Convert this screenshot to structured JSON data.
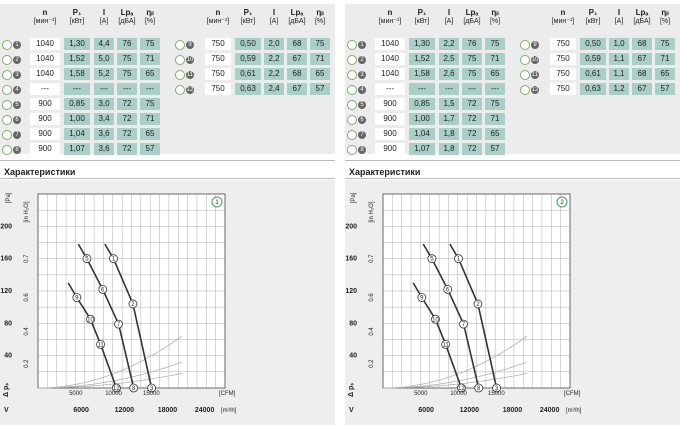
{
  "table": {
    "headers": {
      "n": "n",
      "p1": "P₁",
      "i": "I",
      "lpa": "Lpₐ",
      "eta": "ηᵢₗ"
    },
    "units": {
      "n": "[мин⁻¹]",
      "p1": "[кВт]",
      "i": "[A]",
      "lpa": "[дБA]",
      "eta": "[%]"
    }
  },
  "section_title": "Характеристики",
  "panels": [
    {
      "badge": "1",
      "left_rows": [
        {
          "id": "1",
          "n": "1040",
          "p1": "1,30",
          "i": "4,4",
          "lpa": "76",
          "eta": "75"
        },
        {
          "id": "2",
          "n": "1040",
          "p1": "1,52",
          "i": "5,0",
          "lpa": "75",
          "eta": "71"
        },
        {
          "id": "3",
          "n": "1040",
          "p1": "1,58",
          "i": "5,2",
          "lpa": "75",
          "eta": "65"
        },
        {
          "id": "4",
          "n": "---",
          "p1": "---",
          "i": "---",
          "lpa": "---",
          "eta": "---"
        },
        {
          "id": "5",
          "n": "900",
          "p1": "0,85",
          "i": "3,0",
          "lpa": "72",
          "eta": "75"
        },
        {
          "id": "6",
          "n": "900",
          "p1": "1,00",
          "i": "3,4",
          "lpa": "72",
          "eta": "71"
        },
        {
          "id": "7",
          "n": "900",
          "p1": "1,04",
          "i": "3,6",
          "lpa": "72",
          "eta": "65"
        },
        {
          "id": "8",
          "n": "900",
          "p1": "1,07",
          "i": "3,6",
          "lpa": "72",
          "eta": "57"
        }
      ],
      "right_rows": [
        {
          "id": "9",
          "n": "750",
          "p1": "0,50",
          "i": "2,0",
          "lpa": "68",
          "eta": "75"
        },
        {
          "id": "10",
          "n": "750",
          "p1": "0,59",
          "i": "2,2",
          "lpa": "67",
          "eta": "71"
        },
        {
          "id": "11",
          "n": "750",
          "p1": "0,61",
          "i": "2,2",
          "lpa": "68",
          "eta": "65"
        },
        {
          "id": "12",
          "n": "750",
          "p1": "0,63",
          "i": "2,4",
          "lpa": "67",
          "eta": "57"
        }
      ]
    },
    {
      "badge": "2",
      "left_rows": [
        {
          "id": "1",
          "n": "1040",
          "p1": "1,30",
          "i": "2,2",
          "lpa": "76",
          "eta": "75"
        },
        {
          "id": "2",
          "n": "1040",
          "p1": "1,52",
          "i": "2,5",
          "lpa": "75",
          "eta": "71"
        },
        {
          "id": "3",
          "n": "1040",
          "p1": "1,58",
          "i": "2,6",
          "lpa": "75",
          "eta": "65"
        },
        {
          "id": "4",
          "n": "---",
          "p1": "---",
          "i": "---",
          "lpa": "---",
          "eta": "---"
        },
        {
          "id": "5",
          "n": "900",
          "p1": "0,85",
          "i": "1,5",
          "lpa": "72",
          "eta": "75"
        },
        {
          "id": "6",
          "n": "900",
          "p1": "1,00",
          "i": "1,7",
          "lpa": "72",
          "eta": "71"
        },
        {
          "id": "7",
          "n": "900",
          "p1": "1,04",
          "i": "1,8",
          "lpa": "72",
          "eta": "65"
        },
        {
          "id": "8",
          "n": "900",
          "p1": "1,07",
          "i": "1,8",
          "lpa": "72",
          "eta": "57"
        }
      ],
      "right_rows": [
        {
          "id": "9",
          "n": "750",
          "p1": "0,50",
          "i": "1,0",
          "lpa": "68",
          "eta": "75"
        },
        {
          "id": "10",
          "n": "750",
          "p1": "0,59",
          "i": "1,1",
          "lpa": "67",
          "eta": "71"
        },
        {
          "id": "11",
          "n": "750",
          "p1": "0,61",
          "i": "1,1",
          "lpa": "68",
          "eta": "65"
        },
        {
          "id": "12",
          "n": "750",
          "p1": "0,63",
          "i": "1,2",
          "lpa": "67",
          "eta": "57"
        }
      ]
    }
  ],
  "chart_data": [
    {
      "type": "line",
      "badge": "1",
      "y_axis": {
        "label_pa": "[Pa]",
        "label_inh2o": "[in H₂O]",
        "ticks_pa": [
          40,
          80,
          120,
          160,
          200
        ],
        "ticks_inh2o": [
          "0.2",
          "0.4",
          "0.6",
          "0.7"
        ],
        "ylim": [
          0,
          240
        ],
        "symbol": "Δ pₛ"
      },
      "x_axis": {
        "ticks_cfm": [
          "5000",
          "10000",
          "15000"
        ],
        "label_cfm": "[CFM]",
        "ticks_m3h": [
          "6000",
          "12000",
          "18000",
          "24000"
        ],
        "label_m3h": "[m³/h]",
        "xlim": [
          0,
          26000
        ],
        "symbol": "V"
      },
      "grid": true,
      "series": [
        {
          "n": "1040",
          "points": [
            {
              "id": "1",
              "x": 10500,
              "y": 160
            },
            {
              "id": "2",
              "x": 13200,
              "y": 104
            },
            {
              "id": "3",
              "x": 15800,
              "y": 0
            }
          ]
        },
        {
          "id_set": "900",
          "n": "900",
          "points": [
            {
              "id": "5",
              "x": 6800,
              "y": 160
            },
            {
              "id": "6",
              "x": 9000,
              "y": 122
            },
            {
              "id": "7",
              "x": 11200,
              "y": 79
            },
            {
              "id": "8",
              "x": 13300,
              "y": 0
            }
          ]
        },
        {
          "n": "750",
          "points": [
            {
              "id": "9",
              "x": 5400,
              "y": 112
            },
            {
              "id": "10",
              "x": 7300,
              "y": 85
            },
            {
              "id": "11",
              "x": 8700,
              "y": 54
            },
            {
              "id": "12",
              "x": 10900,
              "y": 0
            }
          ]
        }
      ]
    },
    {
      "type": "line",
      "badge": "2",
      "y_axis": {
        "label_pa": "[Pa]",
        "label_inh2o": "[in H₂O]",
        "ticks_pa": [
          40,
          80,
          120,
          160,
          200
        ],
        "ticks_inh2o": [
          "0.2",
          "0.4",
          "0.6",
          "0.7"
        ],
        "ylim": [
          0,
          240
        ],
        "symbol": "Δ pₛ"
      },
      "x_axis": {
        "ticks_cfm": [
          "5000",
          "10000",
          "15000"
        ],
        "label_cfm": "[CFM]",
        "ticks_m3h": [
          "6000",
          "12000",
          "18000",
          "24000"
        ],
        "label_m3h": "[m³/h]",
        "xlim": [
          0,
          26000
        ],
        "symbol": "V"
      },
      "grid": true,
      "series": [
        {
          "n": "1040",
          "points": [
            {
              "id": "1",
              "x": 10500,
              "y": 160
            },
            {
              "id": "2",
              "x": 13200,
              "y": 104
            },
            {
              "id": "3",
              "x": 15800,
              "y": 0
            }
          ]
        },
        {
          "n": "900",
          "points": [
            {
              "id": "5",
              "x": 6800,
              "y": 160
            },
            {
              "id": "6",
              "x": 9000,
              "y": 122
            },
            {
              "id": "7",
              "x": 11200,
              "y": 79
            },
            {
              "id": "8",
              "x": 13300,
              "y": 0
            }
          ]
        },
        {
          "n": "750",
          "points": [
            {
              "id": "9",
              "x": 5400,
              "y": 112
            },
            {
              "id": "10",
              "x": 7300,
              "y": 85
            },
            {
              "id": "11",
              "x": 8700,
              "y": 54
            },
            {
              "id": "12",
              "x": 10900,
              "y": 0
            }
          ]
        }
      ]
    }
  ]
}
